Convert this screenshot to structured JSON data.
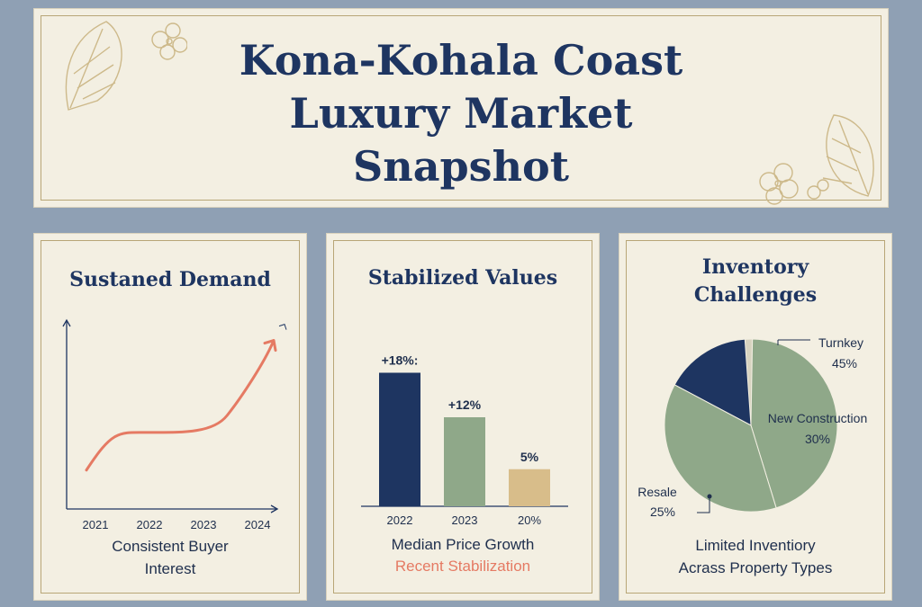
{
  "header": {
    "title_line1": "Kona-Kohala Coast",
    "title_line2": "Luxury Market",
    "title_line3": "Snapshot"
  },
  "card1": {
    "title": "Sustaned Demand",
    "caption_line1": "Consistent Buyer",
    "caption_line2": "Interest"
  },
  "card2": {
    "title": "Stabilized Values",
    "caption": "Median Price Growth",
    "caption_accent": "Recent Stabilization"
  },
  "card3": {
    "title_line1": "Inventory",
    "title_line2": "Challenges",
    "caption_line1": "Limited Inventiory",
    "caption_line2": "Acrass Property Types"
  },
  "colors": {
    "navy": "#1e3561",
    "sage": "#8fa889",
    "tan": "#d8bd8a",
    "coral": "#e57a63",
    "cream": "#f3efe2",
    "gold": "#b8a677"
  },
  "chart_data": [
    {
      "type": "line",
      "x": [
        "2021",
        "2022",
        "2023",
        "2024"
      ],
      "series": [
        {
          "values": [
            1,
            2.8,
            3,
            7.2
          ]
        }
      ],
      "ylim": [
        0,
        8
      ],
      "grid": false,
      "arrowhead": true
    },
    {
      "type": "bar",
      "categories": [
        "2022",
        "2023",
        "20%"
      ],
      "values": [
        18,
        12,
        5
      ],
      "data_labels": [
        "+18%:",
        "+12%",
        "5%"
      ],
      "bar_colors": [
        "#1e3561",
        "#8fa889",
        "#d8bd8a"
      ],
      "ylim": [
        0,
        20
      ]
    },
    {
      "type": "pie",
      "slices": [
        {
          "name": "Turnkey",
          "value": 45,
          "label": "45%",
          "color": "#8fa889"
        },
        {
          "name": "New Construction",
          "value": 30,
          "label": "30%",
          "color": "#1e3561"
        },
        {
          "name": "Resale",
          "value": 25,
          "label": "25%",
          "color": "#8fa889"
        }
      ]
    }
  ]
}
